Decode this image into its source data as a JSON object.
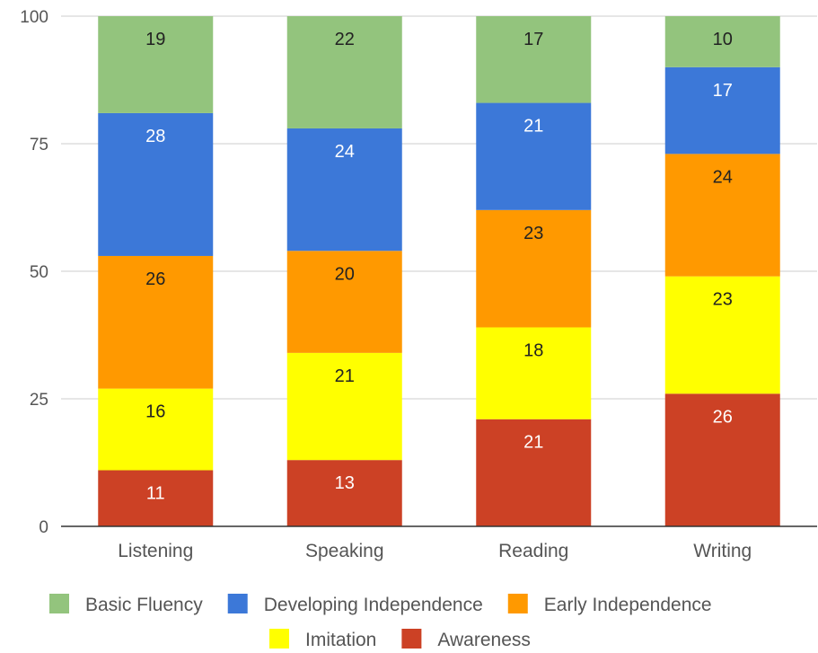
{
  "chart_data": {
    "type": "bar",
    "stacked": true,
    "title": "",
    "xlabel": "",
    "ylabel": "",
    "ylim": [
      0,
      100
    ],
    "yticks": [
      0,
      25,
      50,
      75,
      100
    ],
    "grid": true,
    "legend_position": "bottom",
    "categories": [
      "Listening",
      "Speaking",
      "Reading",
      "Writing"
    ],
    "series": [
      {
        "name": "Awareness",
        "color": "#cc4125",
        "label_color": "#ffffff",
        "values": [
          11,
          13,
          21,
          26
        ]
      },
      {
        "name": "Imitation",
        "color": "#ffff00",
        "label_color": "#222222",
        "values": [
          16,
          21,
          18,
          23
        ]
      },
      {
        "name": "Early Independence",
        "color": "#ff9900",
        "label_color": "#222222",
        "values": [
          26,
          20,
          23,
          24
        ]
      },
      {
        "name": "Developing Independence",
        "color": "#3c78d8",
        "label_color": "#ffffff",
        "values": [
          28,
          24,
          21,
          17
        ]
      },
      {
        "name": "Basic Fluency",
        "color": "#93c47d",
        "label_color": "#222222",
        "values": [
          19,
          22,
          17,
          10
        ]
      }
    ],
    "legend_order": [
      "Basic Fluency",
      "Developing Independence",
      "Early Independence",
      "Imitation",
      "Awareness"
    ]
  }
}
